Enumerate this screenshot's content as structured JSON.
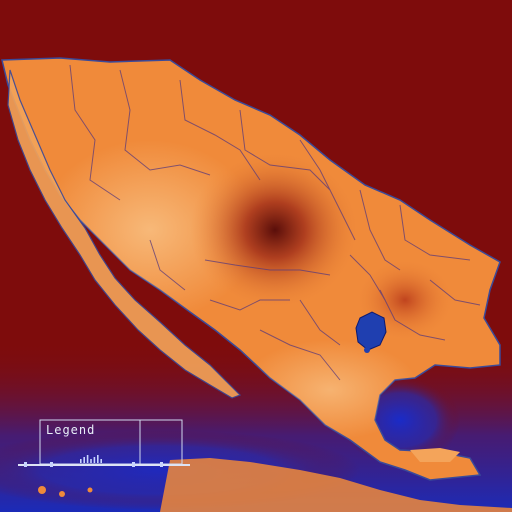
{
  "map": {
    "type": "choropleth-heatmap",
    "colors": {
      "background": "#7e0c0c",
      "land_base": "#f08a3a",
      "land_light": "#f6b36a",
      "hotspot": "#5a0e0a",
      "water_blue": "#1b2bb8",
      "lake": "#1f3fb0",
      "borders": "#5b3a7a"
    },
    "hotspots": [
      {
        "label": "",
        "intensity": 1.0
      },
      {
        "label": "",
        "intensity": 0.55
      }
    ]
  },
  "legend": {
    "title": "Legend",
    "bar_count": 7
  }
}
